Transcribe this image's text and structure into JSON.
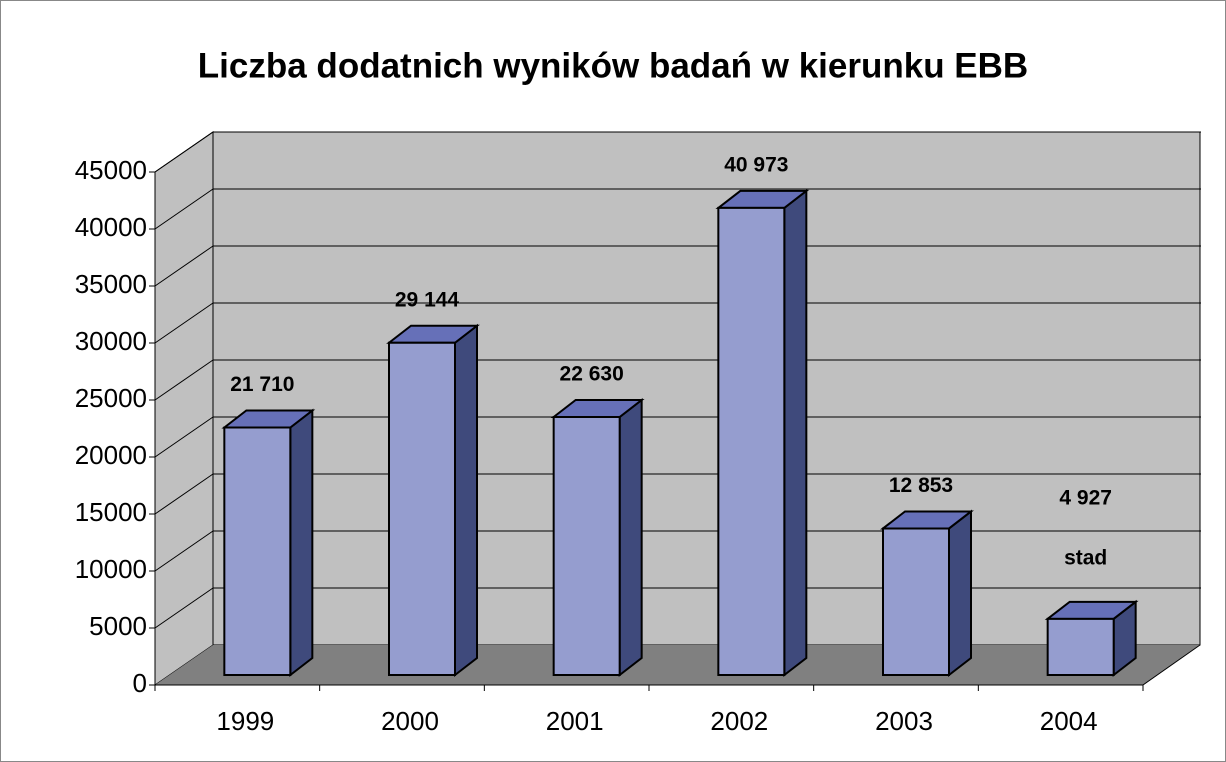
{
  "chart_data": {
    "type": "bar3d",
    "title": "Liczba dodatnich wyników badań w kierunku EBB",
    "categories": [
      "1999",
      "2000",
      "2001",
      "2002",
      "2003",
      "2004"
    ],
    "values": [
      21710,
      29144,
      22630,
      40973,
      12853,
      4927
    ],
    "value_labels": [
      "21 710",
      "29 144",
      "22 630",
      "40 973",
      "12 853",
      "4 927"
    ],
    "annotation": "stad",
    "color": "#959dcf",
    "ylim": [
      0,
      45000
    ],
    "yticks": [
      0,
      5000,
      10000,
      15000,
      20000,
      25000,
      30000,
      35000,
      40000,
      45000
    ],
    "grid": true
  }
}
